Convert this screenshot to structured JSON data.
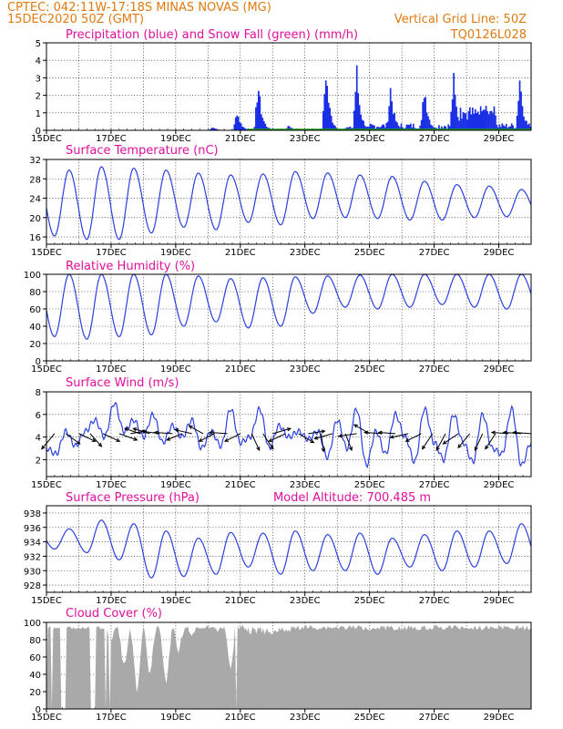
{
  "header": {
    "station": "CPTEC:   042:11W-17:18S   MINAS NOVAS (MG)",
    "run": "15DEC2020 50Z (GMT)",
    "grid_note": "Vertical Grid Line: 50Z",
    "model": "TQ0126L028"
  },
  "colors": {
    "header": "#e07a10",
    "title": "#e0109a",
    "line": "#2a3fe0",
    "precip": "#1a2ee6",
    "snow": "#1a9a1a",
    "cloud": "#a9a9a9"
  },
  "chart_data": [
    {
      "type": "bar",
      "title": "Precipitation (blue) and Snow Fall (green) (mm/h)",
      "x_ticks": [
        "15DEC",
        "17DEC",
        "19DEC",
        "21DEC",
        "23DEC",
        "25DEC",
        "27DEC",
        "29DEC"
      ],
      "ylim": [
        0,
        5
      ],
      "y_ticks": [
        0,
        1,
        2,
        3,
        4,
        5
      ],
      "series": [
        {
          "name": "precipitation",
          "color": "#1a2ee6",
          "events": [
            {
              "day": 20.15,
              "value": 0.2
            },
            {
              "day": 20.9,
              "value": 1.1
            },
            {
              "day": 21.55,
              "value": 2.6
            },
            {
              "day": 22.5,
              "value": 0.3
            },
            {
              "day": 23.65,
              "value": 3.4
            },
            {
              "day": 24.6,
              "value": 3.3
            },
            {
              "day": 25.65,
              "value": 2.4
            },
            {
              "day": 26.7,
              "value": 2.5
            },
            {
              "day": 27.6,
              "value": 2.8
            },
            {
              "day": 28.6,
              "value": 1.5
            },
            {
              "day": 29.65,
              "value": 3.1
            }
          ]
        },
        {
          "name": "snow",
          "color": "#1a9a1a",
          "values": [
            0
          ]
        }
      ]
    },
    {
      "type": "line",
      "title": "Surface Temperature (nC)",
      "x_ticks": [
        "15DEC",
        "17DEC",
        "19DEC",
        "21DEC",
        "23DEC",
        "25DEC",
        "27DEC",
        "29DEC"
      ],
      "ylim": [
        14.5,
        32
      ],
      "y_ticks": [
        16,
        20,
        24,
        28,
        32
      ],
      "series": [
        {
          "name": "temperature",
          "highs": [
            29.8,
            30.5,
            30.2,
            29.8,
            29.2,
            28.8,
            29.0,
            29.5,
            29.2,
            28.8,
            28.5,
            27.5,
            26.8,
            26.5,
            25.8
          ],
          "lows": [
            16.2,
            15.5,
            15.5,
            16.8,
            18.0,
            17.5,
            19.0,
            18.5,
            19.8,
            20.0,
            19.8,
            19.5,
            19.5,
            20.0,
            20.2
          ]
        }
      ]
    },
    {
      "type": "line",
      "title": "Relative Humidity (%)",
      "x_ticks": [
        "15DEC",
        "17DEC",
        "19DEC",
        "21DEC",
        "23DEC",
        "25DEC",
        "27DEC",
        "29DEC"
      ],
      "ylim": [
        0,
        100
      ],
      "y_ticks": [
        0,
        20,
        40,
        60,
        80,
        100
      ],
      "series": [
        {
          "name": "humidity",
          "highs": [
            100,
            100,
            100,
            100,
            98,
            95,
            96,
            97,
            98,
            99,
            100,
            100,
            100,
            100,
            100
          ],
          "lows": [
            28,
            25,
            28,
            30,
            40,
            45,
            38,
            40,
            55,
            62,
            60,
            62,
            65,
            62,
            60
          ]
        }
      ]
    },
    {
      "type": "line",
      "title": "Surface Wind (m/s)",
      "x_ticks": [
        "15DEC",
        "17DEC",
        "19DEC",
        "21DEC",
        "23DEC",
        "25DEC",
        "27DEC",
        "29DEC"
      ],
      "ylim": [
        0.5,
        8
      ],
      "y_ticks": [
        2,
        4,
        6,
        8
      ],
      "series": [
        {
          "name": "wind_speed",
          "points": [
            [
              15.0,
              3.0
            ],
            [
              15.3,
              2.5
            ],
            [
              15.6,
              4.5
            ],
            [
              15.9,
              3.2
            ],
            [
              16.2,
              4.5
            ],
            [
              16.5,
              5.5
            ],
            [
              16.8,
              4.0
            ],
            [
              17.1,
              7.0
            ],
            [
              17.4,
              4.5
            ],
            [
              17.7,
              5.5
            ],
            [
              18.0,
              4.0
            ],
            [
              18.3,
              6.0
            ],
            [
              18.6,
              3.5
            ],
            [
              18.9,
              5.0
            ],
            [
              19.2,
              4.0
            ],
            [
              19.5,
              5.5
            ],
            [
              19.8,
              3.0
            ],
            [
              20.1,
              4.5
            ],
            [
              20.4,
              3.2
            ],
            [
              20.7,
              6.5
            ],
            [
              21.0,
              3.5
            ],
            [
              21.3,
              4.0
            ],
            [
              21.6,
              6.5
            ],
            [
              21.9,
              3.0
            ],
            [
              22.2,
              5.0
            ],
            [
              22.5,
              4.0
            ],
            [
              22.8,
              4.5
            ],
            [
              23.1,
              3.8
            ],
            [
              23.4,
              4.5
            ],
            [
              23.7,
              2.2
            ],
            [
              24.0,
              5.5
            ],
            [
              24.3,
              3.0
            ],
            [
              24.6,
              6.5
            ],
            [
              24.9,
              1.5
            ],
            [
              25.2,
              4.5
            ],
            [
              25.5,
              2.5
            ],
            [
              25.8,
              6.0
            ],
            [
              26.1,
              4.0
            ],
            [
              26.4,
              1.8
            ],
            [
              26.7,
              6.5
            ],
            [
              27.0,
              3.5
            ],
            [
              27.3,
              2.0
            ],
            [
              27.6,
              6.0
            ],
            [
              27.9,
              3.5
            ],
            [
              28.2,
              1.8
            ],
            [
              28.5,
              6.0
            ],
            [
              28.8,
              3.0
            ],
            [
              29.1,
              2.5
            ],
            [
              29.4,
              6.5
            ],
            [
              29.7,
              1.5
            ],
            [
              30.0,
              3.5
            ]
          ]
        },
        {
          "name": "wind_arrows",
          "vectors": [
            [
              15.25,
              -1,
              -1.2
            ],
            [
              15.6,
              1.1,
              -0.8
            ],
            [
              16.0,
              1.3,
              -0.6
            ],
            [
              16.35,
              0.9,
              -1.0
            ],
            [
              16.75,
              1.3,
              -0.6
            ],
            [
              17.25,
              1.4,
              -0.5
            ],
            [
              17.6,
              1.2,
              0.2
            ],
            [
              17.9,
              -1.2,
              0.4
            ],
            [
              18.2,
              -1.3,
              0.4
            ],
            [
              18.5,
              -1.4,
              0.2
            ],
            [
              18.9,
              -1.4,
              0.1
            ],
            [
              19.2,
              -1.2,
              -0.5
            ],
            [
              19.5,
              -1.3,
              0.3
            ],
            [
              19.85,
              -1.1,
              0.6
            ],
            [
              20.2,
              -1.2,
              -0.6
            ],
            [
              20.6,
              -1.4,
              0.1
            ],
            [
              21.0,
              -1.2,
              -0.6
            ],
            [
              21.35,
              0.6,
              -1.3
            ],
            [
              21.7,
              0.8,
              -1.2
            ],
            [
              22.0,
              1.4,
              0.4
            ],
            [
              22.4,
              -1.3,
              -0.6
            ],
            [
              22.8,
              1.2,
              -0.7
            ],
            [
              23.1,
              1.3,
              0.2
            ],
            [
              23.5,
              0.2,
              -1.4
            ],
            [
              23.85,
              -1.4,
              -0.4
            ],
            [
              24.25,
              0.5,
              -1.3
            ],
            [
              24.6,
              -1.4,
              -0.2
            ],
            [
              25.0,
              -1.2,
              0.7
            ],
            [
              25.4,
              -1.4,
              0.1
            ],
            [
              25.8,
              -1.3,
              0.1
            ],
            [
              26.2,
              -1.4,
              -0.3
            ],
            [
              26.6,
              -1.2,
              -0.6
            ],
            [
              26.95,
              -0.8,
              -1.2
            ],
            [
              27.35,
              -0.7,
              -1.3
            ],
            [
              27.75,
              -1.2,
              -0.8
            ],
            [
              28.1,
              -0.9,
              -1.1
            ],
            [
              28.5,
              -0.6,
              -1.3
            ],
            [
              28.9,
              -0.8,
              -1.2
            ],
            [
              29.3,
              -1.3,
              0.1
            ],
            [
              29.7,
              -1.4,
              0.1
            ],
            [
              30.0,
              -1.4,
              0.1
            ]
          ]
        }
      ]
    },
    {
      "type": "line",
      "title": "Surface Pressure (hPa)",
      "annotation": "Model Altitude: 700.485  m",
      "x_ticks": [
        "15DEC",
        "17DEC",
        "19DEC",
        "21DEC",
        "23DEC",
        "25DEC",
        "27DEC",
        "29DEC"
      ],
      "ylim": [
        927,
        939
      ],
      "y_ticks": [
        928,
        930,
        932,
        934,
        936,
        938
      ],
      "series": [
        {
          "name": "pressure",
          "highs": [
            935.8,
            937.0,
            936.5,
            935.5,
            934.5,
            935.3,
            935.2,
            935.5,
            935.0,
            935.2,
            934.5,
            935.0,
            935.5,
            935.5,
            936.5
          ],
          "lows": [
            933.0,
            932.5,
            931.5,
            929.0,
            929.2,
            929.5,
            930.5,
            929.5,
            930.0,
            930.0,
            929.5,
            930.5,
            930.0,
            930.5,
            931.0
          ]
        }
      ]
    },
    {
      "type": "area",
      "title": "Cloud Cover (%)",
      "x_ticks": [
        "15DEC",
        "17DEC",
        "19DEC",
        "21DEC",
        "23DEC",
        "25DEC",
        "27DEC",
        "29DEC"
      ],
      "ylim": [
        0,
        100
      ],
      "y_ticks": [
        0,
        20,
        40,
        60,
        80,
        100
      ],
      "series": [
        {
          "name": "cloud_cover",
          "dips": [
            [
              15.25,
              90
            ],
            [
              15.55,
              95
            ],
            [
              16.0,
              96
            ],
            [
              16.5,
              88
            ],
            [
              17.0,
              70
            ],
            [
              17.4,
              40
            ],
            [
              17.8,
              12
            ],
            [
              18.2,
              30
            ],
            [
              18.7,
              20
            ],
            [
              19.1,
              60
            ],
            [
              19.5,
              80
            ],
            [
              19.9,
              88
            ],
            [
              20.3,
              88
            ],
            [
              20.7,
              40
            ]
          ],
          "mask_lo": [
            15.0,
            15.13,
            15.45,
            16.37,
            16.82,
            16.95,
            20.85
          ],
          "mask_hi": [
            15.04,
            15.2,
            15.6,
            16.5,
            16.87,
            17.0,
            20.88
          ]
        }
      ]
    }
  ]
}
